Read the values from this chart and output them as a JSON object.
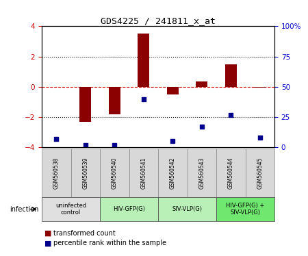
{
  "title": "GDS4225 / 241811_x_at",
  "samples": [
    "GSM560538",
    "GSM560539",
    "GSM560540",
    "GSM560541",
    "GSM560542",
    "GSM560543",
    "GSM560544",
    "GSM560545"
  ],
  "transformed_count": [
    0.0,
    -2.3,
    -1.8,
    3.5,
    -0.5,
    0.35,
    1.5,
    -0.05
  ],
  "percentile_rank": [
    7,
    2,
    2,
    40,
    5,
    17,
    27,
    8
  ],
  "bar_color": "#8B0000",
  "dot_color": "#00008B",
  "ylim": [
    -4,
    4
  ],
  "y2lim": [
    0,
    100
  ],
  "yticks": [
    -4,
    -2,
    0,
    2,
    4
  ],
  "y2ticks": [
    0,
    25,
    50,
    75,
    100
  ],
  "y2ticklabels": [
    "0",
    "25",
    "50",
    "75",
    "100%"
  ],
  "groups": [
    {
      "label": "uninfected\ncontrol",
      "start": 0,
      "end": 2,
      "color": "#e0e0e0"
    },
    {
      "label": "HIV-GFP(G)",
      "start": 2,
      "end": 4,
      "color": "#b8f0b8"
    },
    {
      "label": "SIV-VLP(G)",
      "start": 4,
      "end": 6,
      "color": "#b8f0b8"
    },
    {
      "label": "HIV-GFP(G) +\nSIV-VLP(G)",
      "start": 6,
      "end": 8,
      "color": "#70e870"
    }
  ],
  "legend_red_label": "transformed count",
  "legend_blue_label": "percentile rank within the sample",
  "infection_label": "infection",
  "tick_color_left": "#cc0000",
  "tick_color_right": "#0000cc",
  "bar_width": 0.4,
  "dot_size": 25
}
